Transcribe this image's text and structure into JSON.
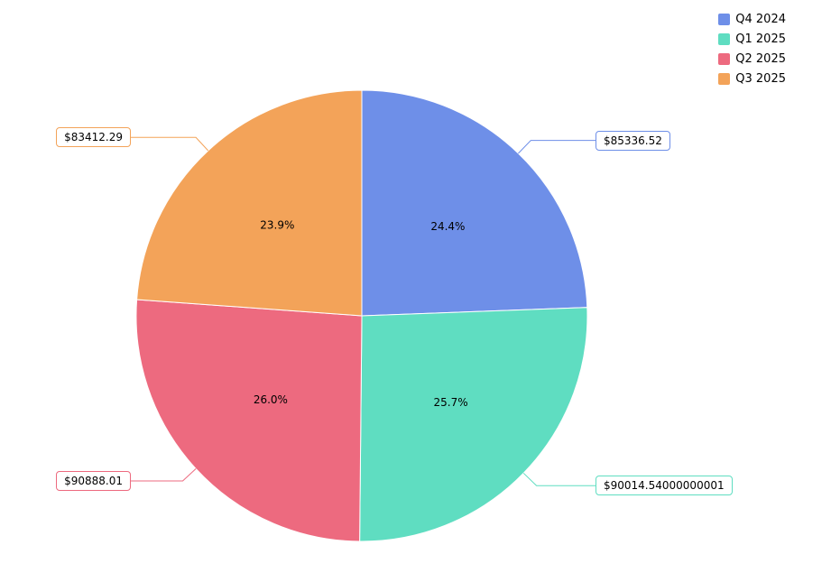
{
  "chart_data": {
    "type": "pie",
    "labels": [
      "Q4 2024",
      "Q1 2025",
      "Q2 2025",
      "Q3 2025"
    ],
    "values": [
      85336.52,
      90014.54000000001,
      90888.01,
      83412.29
    ],
    "percent_labels": [
      "24.4%",
      "25.7%",
      "26.0%",
      "23.9%"
    ],
    "value_labels": [
      "$85336.52",
      "$90014.54000000001",
      "$90888.01",
      "$83412.29"
    ],
    "colors": [
      "#6e8fe8",
      "#5fddc1",
      "#ed6a7f",
      "#f3a359"
    ],
    "start_angle_deg": 0,
    "direction": "clockwise",
    "legend_position": "top-right",
    "background": "#ffffff",
    "title": ""
  }
}
